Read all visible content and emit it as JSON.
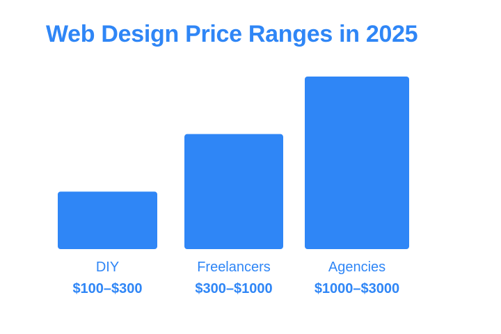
{
  "chart_data": {
    "type": "bar",
    "title": "Web Design Price Ranges in 2025",
    "categories": [
      "DIY",
      "Freelancers",
      "Agencies"
    ],
    "ranges": [
      "$100–$300",
      "$300–$1000",
      "$1000–$3000"
    ],
    "values": [
      1,
      2,
      3
    ],
    "ylim": [
      0,
      3
    ],
    "xlabel": "",
    "ylabel": "",
    "grid": false,
    "legend": "none"
  },
  "colors": {
    "accent": "#2f86f6",
    "text": "#2f86f6",
    "background": "#ffffff"
  }
}
